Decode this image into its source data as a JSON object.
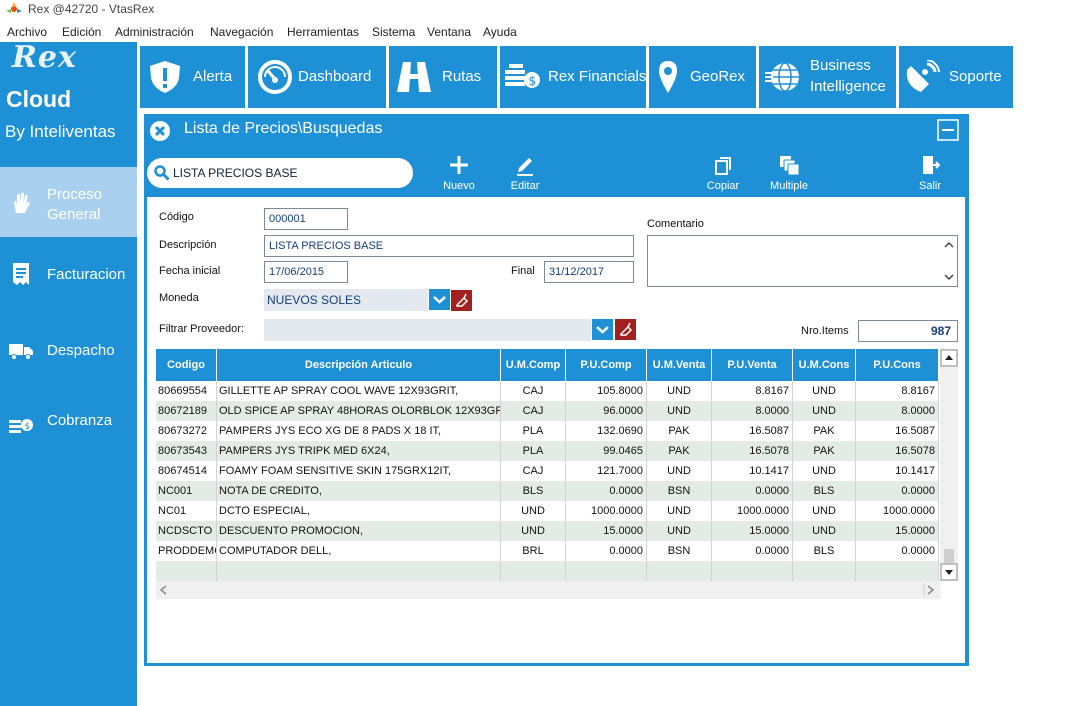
{
  "window": {
    "title": "Rex @42720 - VtasRex"
  },
  "menu": [
    "Archivo",
    "Edición",
    "Administración",
    "Navegación",
    "Herramientas",
    "Sistema",
    "Ventana",
    "Ayuda"
  ],
  "brand": {
    "logo": "Rex",
    "name": "Cloud",
    "by": "By Inteliventas"
  },
  "sidebar": [
    {
      "label": "Proceso General",
      "icon": "hand-icon",
      "active": true
    },
    {
      "label": "Facturacion",
      "icon": "receipt-icon",
      "active": false
    },
    {
      "label": "Despacho",
      "icon": "truck-icon",
      "active": false
    },
    {
      "label": "Cobranza",
      "icon": "coins-icon",
      "active": false
    }
  ],
  "topnav": [
    {
      "label": "Alerta",
      "icon": "shield-alert-icon"
    },
    {
      "label": "Dashboard",
      "icon": "gauge-icon"
    },
    {
      "label": "Rutas",
      "icon": "road-icon"
    },
    {
      "label": "Rex Financials",
      "icon": "coins-dollar-icon"
    },
    {
      "label": "GeoRex",
      "icon": "map-pin-icon"
    },
    {
      "label": "Business Intelligence",
      "icon": "globe-icon"
    },
    {
      "label": "Soporte",
      "icon": "satellite-dish-icon"
    }
  ],
  "panel": {
    "title": "Lista de Precios\\Busquedas",
    "search_value": "LISTA PRECIOS BASE",
    "toolbar": {
      "nuevo": "Nuevo",
      "editar": "Editar",
      "copiar": "Copiar",
      "multiple": "Multiple",
      "salir": "Salir"
    }
  },
  "form": {
    "codigo_label": "Código",
    "codigo": "000001",
    "descripcion_label": "Descripción",
    "descripcion": "LISTA PRECIOS BASE",
    "fecha_inicial_label": "Fecha inicial",
    "fecha_inicial": "17/06/2015",
    "final_label": "Final",
    "final": "31/12/2017",
    "moneda_label": "Moneda",
    "moneda": "NUEVOS SOLES",
    "filtrar_label": "Filtrar Proveedor:",
    "filtrar": "",
    "comentario_label": "Comentario",
    "comentario": "",
    "nro_items_label": "Nro.Items",
    "nro_items": "987"
  },
  "table": {
    "columns": [
      "Codigo",
      "Descripción Articulo",
      "U.M.Comp",
      "P.U.Comp",
      "U.M.Venta",
      "P.U.Venta",
      "U.M.Cons",
      "P.U.Cons"
    ],
    "rows": [
      [
        "80669554",
        "GILLETTE AP SPRAY  COOL WAVE 12X93GRIT,",
        "CAJ",
        "105.8000",
        "UND",
        "8.8167",
        "UND",
        "8.8167"
      ],
      [
        "80672189",
        "OLD SPICE AP SPRAY 48HORAS OLORBLOK 12X93GR,",
        "CAJ",
        "96.0000",
        "UND",
        "8.0000",
        "UND",
        "8.0000"
      ],
      [
        "80673272",
        "PAMPERS JYS ECO XG DE 8 PADS X 18 IT,",
        "PLA",
        "132.0690",
        "PAK",
        "16.5087",
        "PAK",
        "16.5087"
      ],
      [
        "80673543",
        "PAMPERS JYS TRIPK MED 6X24,",
        "PLA",
        "99.0465",
        "PAK",
        "16.5078",
        "PAK",
        "16.5078"
      ],
      [
        "80674514",
        "FOAMY FOAM SENSITIVE SKIN 175GRX12IT,",
        "CAJ",
        "121.7000",
        "UND",
        "10.1417",
        "UND",
        "10.1417"
      ],
      [
        "NC001",
        "NOTA DE CREDITO,",
        "BLS",
        "0.0000",
        "BSN",
        "0.0000",
        "BLS",
        "0.0000"
      ],
      [
        "NC01",
        "DCTO ESPECIAL,",
        "UND",
        "1000.0000",
        "UND",
        "1000.0000",
        "UND",
        "1000.0000"
      ],
      [
        "NCDSCTO",
        "DESCUENTO PROMOCION,",
        "UND",
        "15.0000",
        "UND",
        "15.0000",
        "UND",
        "15.0000"
      ],
      [
        "PRODDEMO",
        "COMPUTADOR DELL,",
        "BRL",
        "0.0000",
        "BSN",
        "0.0000",
        "BLS",
        "0.0000"
      ]
    ]
  },
  "colors": {
    "accent": "#1e90d6",
    "sidebar_active": "#a9d1ef",
    "row_alt": "#e3ece4",
    "clear_button": "#a32020"
  }
}
